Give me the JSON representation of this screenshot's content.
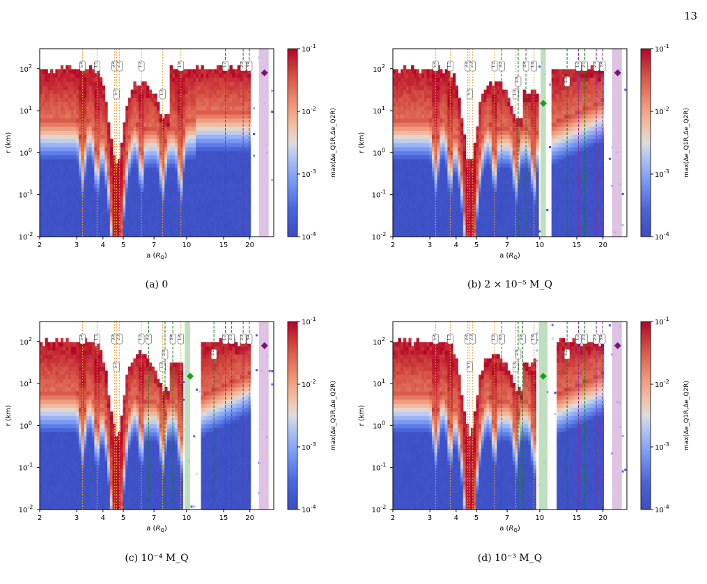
{
  "page_number": "13",
  "colors": {
    "resonance_inner": "#e8a23a",
    "resonance_outer": "#8a2b9a",
    "resonance_green": "#1a7a1a",
    "moon_marker": "#18a018",
    "outer_marker": "#7b1670",
    "band_purple": "#d8b8e0",
    "band_green": "#b8ddb8",
    "cmap_low": "#3b4cc0",
    "cmap_mid": "#dddddd",
    "cmap_high": "#b40426"
  },
  "chart_data": [
    {
      "type": "heatmap",
      "caption": "(a) 0",
      "xlabel": "a (R_Q)",
      "ylabel": "r (km)",
      "x_scale": "log",
      "y_scale": "log",
      "xlim": [
        2,
        26
      ],
      "ylim": [
        0.01,
        300
      ],
      "x_ticks": [
        2,
        3,
        4,
        5,
        7,
        10,
        15,
        20
      ],
      "y_ticks": [
        "10^-2",
        "10^-1",
        "10^0",
        "10^1",
        "10^2"
      ],
      "colorbar": {
        "label": "max(Δe_Q1R,Δe_Q2R)",
        "scale": "log",
        "range": [
          0.0001,
          0.1
        ],
        "ticks": [
          "10^-4",
          "10^-3",
          "10^-2",
          "10^-1"
        ]
      },
      "resonances_inner": [
        {
          "a": 3.2,
          "label": "5:4"
        },
        {
          "a": 3.75,
          "label": "1:1"
        },
        {
          "a": 4.55,
          "label": "3:4"
        },
        {
          "a": 4.8,
          "label": "2:3"
        },
        {
          "a": 4.65,
          "label": "5:7"
        },
        {
          "a": 6.1,
          "label": "1:2"
        },
        {
          "a": 7.7,
          "label": "1:3"
        },
        {
          "a": 9.4,
          "label": "1:4"
        }
      ],
      "resonances_outer": [
        {
          "a": 15.3,
          "label": "1:2"
        },
        {
          "a": 18.6,
          "label": "2:3"
        },
        {
          "a": 19.9,
          "label": "3:4"
        }
      ],
      "resonances_green": [],
      "moon_a": null,
      "moon_r": null,
      "moon_band": null,
      "outer_body": {
        "a": 23.5,
        "r": 80
      },
      "outer_band": [
        22.1,
        24.6
      ],
      "gap": null
    },
    {
      "type": "heatmap",
      "caption": "(b) 2 × 10⁻⁵ M_Q",
      "xlabel": "a (R_Q)",
      "ylabel": "r (km)",
      "x_scale": "log",
      "y_scale": "log",
      "xlim": [
        2,
        26
      ],
      "ylim": [
        0.01,
        300
      ],
      "x_ticks": [
        2,
        3,
        4,
        5,
        7,
        10,
        15,
        20
      ],
      "y_ticks": [
        "10^-2",
        "10^-1",
        "10^0",
        "10^1",
        "10^2"
      ],
      "colorbar": {
        "label": "max(Δe_Q1R,Δe_Q2R)",
        "scale": "log",
        "range": [
          0.0001,
          0.1
        ],
        "ticks": [
          "10^-4",
          "10^-3",
          "10^-2",
          "10^-1"
        ]
      },
      "resonances_inner": [
        {
          "a": 3.2,
          "label": "5:4"
        },
        {
          "a": 3.75,
          "label": "1:1"
        },
        {
          "a": 4.55,
          "label": "3:4"
        },
        {
          "a": 4.8,
          "label": "2:3"
        },
        {
          "a": 4.65,
          "label": "5:7"
        },
        {
          "a": 6.1,
          "label": "1:2"
        },
        {
          "a": 7.7,
          "label": "1:3"
        },
        {
          "a": 9.4,
          "label": "1:4"
        }
      ],
      "resonances_outer": [
        {
          "a": 15.3,
          "label": "1:2"
        },
        {
          "a": 18.6,
          "label": "2:3"
        },
        {
          "a": 19.9,
          "label": "3:4"
        }
      ],
      "resonances_green": [
        {
          "a": 6.6,
          "label": "3:2"
        },
        {
          "a": 7.9,
          "label": "2:3"
        },
        {
          "a": 8.6,
          "label": "3:4"
        },
        {
          "a": 13.5,
          "label": "2:3"
        },
        {
          "a": 16.4,
          "label": "2:1"
        }
      ],
      "moon_a": 10.4,
      "moon_r": 15,
      "moon_band": [
        10.1,
        10.7
      ],
      "outer_body": {
        "a": 23.5,
        "r": 80
      },
      "outer_band": [
        22.1,
        24.6
      ],
      "gap": [
        10.0,
        11.4
      ]
    },
    {
      "type": "heatmap",
      "caption": "(c) 10⁻⁴ M_Q",
      "xlabel": "a (R_Q)",
      "ylabel": "r (km)",
      "x_scale": "log",
      "y_scale": "log",
      "xlim": [
        2,
        26
      ],
      "ylim": [
        0.01,
        300
      ],
      "x_ticks": [
        2,
        3,
        4,
        5,
        7,
        10,
        15,
        20
      ],
      "y_ticks": [
        "10^-2",
        "10^-1",
        "10^0",
        "10^1",
        "10^2"
      ],
      "colorbar": {
        "label": "max(Δe_Q1R,Δe_Q2R)",
        "scale": "log",
        "range": [
          0.0001,
          0.1
        ],
        "ticks": [
          "10^-4",
          "10^-3",
          "10^-2",
          "10^-1"
        ]
      },
      "resonances_inner": [
        {
          "a": 3.2,
          "label": "5:4"
        },
        {
          "a": 3.75,
          "label": "1:1"
        },
        {
          "a": 4.55,
          "label": "3:4"
        },
        {
          "a": 4.8,
          "label": "2:3"
        },
        {
          "a": 4.65,
          "label": "5:7"
        },
        {
          "a": 6.1,
          "label": "1:2"
        },
        {
          "a": 7.7,
          "label": "1:3"
        },
        {
          "a": 9.4,
          "label": "1:4"
        }
      ],
      "resonances_outer": [
        {
          "a": 15.3,
          "label": "1:2"
        },
        {
          "a": 18.6,
          "label": "2:3"
        },
        {
          "a": 19.9,
          "label": "3:4"
        }
      ],
      "resonances_green": [
        {
          "a": 6.6,
          "label": "3:2"
        },
        {
          "a": 7.9,
          "label": "2:3"
        },
        {
          "a": 8.6,
          "label": "3:4"
        },
        {
          "a": 13.5,
          "label": "3:2"
        },
        {
          "a": 16.4,
          "label": "2:1"
        }
      ],
      "moon_a": 10.4,
      "moon_r": 15,
      "moon_band": [
        9.8,
        10.4
      ],
      "outer_body": {
        "a": 23.5,
        "r": 80
      },
      "outer_band": [
        22.1,
        24.6
      ],
      "gap": [
        9.7,
        11.8
      ]
    },
    {
      "type": "heatmap",
      "caption": "(d) 10⁻³ M_Q",
      "xlabel": "a (R_Q)",
      "ylabel": "r (km)",
      "x_scale": "log",
      "y_scale": "log",
      "xlim": [
        2,
        26
      ],
      "ylim": [
        0.01,
        300
      ],
      "x_ticks": [
        2,
        3,
        4,
        5,
        7,
        10,
        15,
        20
      ],
      "y_ticks": [
        "10^-2",
        "10^-1",
        "10^0",
        "10^1",
        "10^2"
      ],
      "colorbar": {
        "label": "max(Δe_Q1R,Δe_Q2R)",
        "scale": "log",
        "range": [
          0.0001,
          0.1
        ],
        "ticks": [
          "10^-4",
          "10^-3",
          "10^-2",
          "10^-1"
        ]
      },
      "resonances_inner": [
        {
          "a": 3.2,
          "label": "5:4"
        },
        {
          "a": 3.75,
          "label": "1:1"
        },
        {
          "a": 4.55,
          "label": "3:4"
        },
        {
          "a": 4.8,
          "label": "2:3"
        },
        {
          "a": 4.65,
          "label": "5:7"
        },
        {
          "a": 6.1,
          "label": "1:2"
        },
        {
          "a": 7.7,
          "label": "1:3"
        },
        {
          "a": 9.4,
          "label": "1:4"
        }
      ],
      "resonances_outer": [
        {
          "a": 15.3,
          "label": "1:2"
        },
        {
          "a": 18.6,
          "label": "2:3"
        },
        {
          "a": 19.9,
          "label": "3:4"
        }
      ],
      "resonances_green": [
        {
          "a": 6.6,
          "label": "3:2"
        },
        {
          "a": 7.9,
          "label": "2:3"
        },
        {
          "a": 8.3,
          "label": "3:4"
        },
        {
          "a": 13.5,
          "label": "3:2"
        },
        {
          "a": 16.4,
          "label": "2:1"
        }
      ],
      "moon_a": 10.4,
      "moon_r": 15,
      "moon_band": [
        9.9,
        10.9
      ],
      "outer_body": {
        "a": 23.5,
        "r": 80
      },
      "outer_band": [
        22.1,
        24.6
      ],
      "gap": [
        9.5,
        12.2
      ]
    }
  ]
}
